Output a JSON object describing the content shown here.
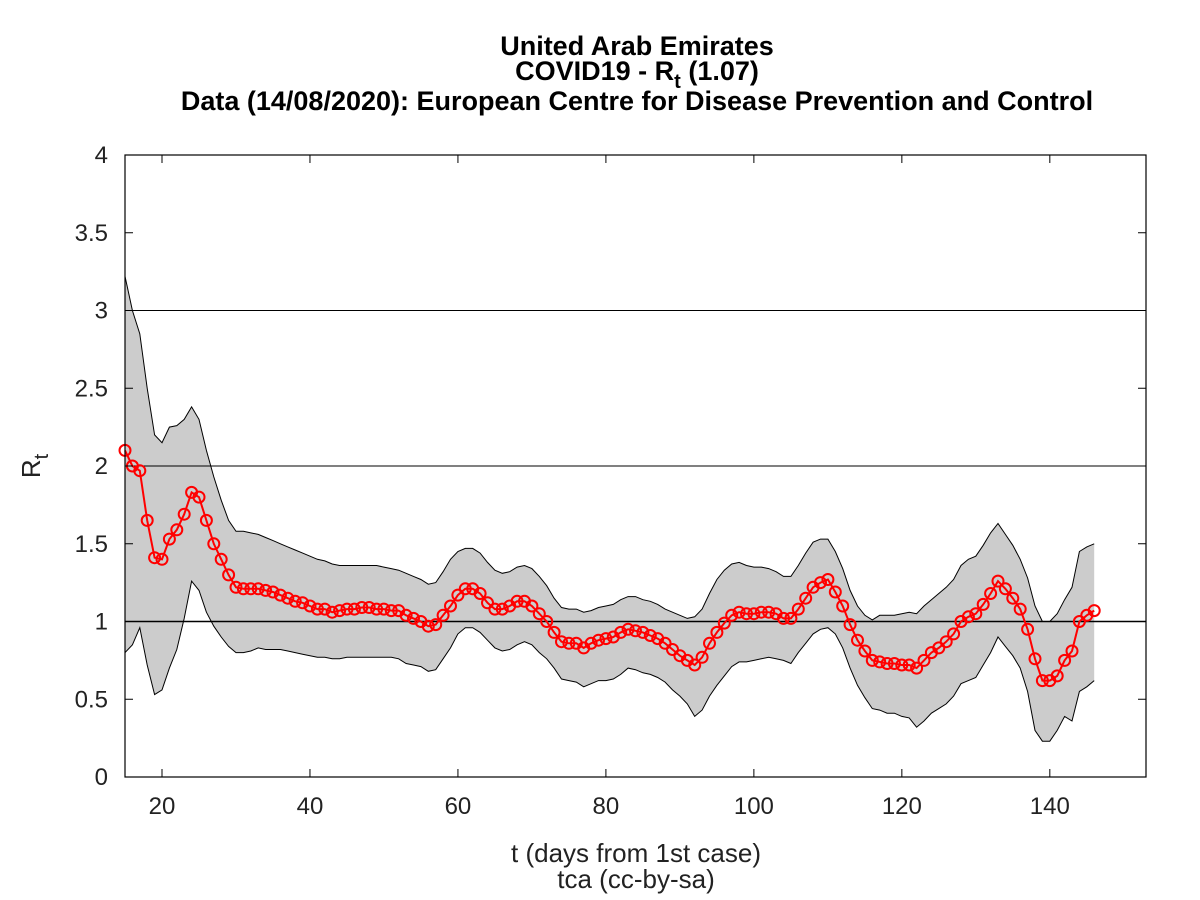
{
  "chart_data": {
    "type": "line",
    "title_lines": [
      "United Arab Emirates",
      "COVID19 - R",
      "t",
      " (1.07)",
      "Data (14/08/2020): European Centre for Disease Prevention and Control"
    ],
    "title": {
      "line1": "United Arab Emirates",
      "line2_prefix": "COVID19 - R",
      "line2_sub": "t",
      "line2_suffix": " (1.07)",
      "line3": "Data (14/08/2020): European Centre for Disease Prevention and Control"
    },
    "xlabel": "t (days from 1st case)",
    "xlabel2": "tca (cc-by-sa)",
    "ylabel_main": "R",
    "ylabel_sub": "t",
    "xlim": [
      15,
      153
    ],
    "ylim": [
      0,
      4
    ],
    "xticks": [
      20,
      40,
      60,
      80,
      100,
      120,
      140
    ],
    "yticks": [
      0,
      0.5,
      1,
      1.5,
      2,
      2.5,
      3,
      3.5,
      4
    ],
    "ytick_labels": [
      "0",
      "0.5",
      "1",
      "1.5",
      "2",
      "2.5",
      "3",
      "3.5",
      "4"
    ],
    "hlines": [
      1,
      2,
      3
    ],
    "grid": false,
    "colors": {
      "series": "#ff0000",
      "band": "#cccccc",
      "band_edge": "#000000"
    },
    "x_start": 15,
    "rt": [
      2.1,
      2.0,
      1.97,
      1.65,
      1.41,
      1.4,
      1.53,
      1.59,
      1.69,
      1.83,
      1.8,
      1.65,
      1.5,
      1.4,
      1.3,
      1.22,
      1.21,
      1.21,
      1.21,
      1.2,
      1.19,
      1.17,
      1.15,
      1.13,
      1.12,
      1.1,
      1.08,
      1.08,
      1.06,
      1.07,
      1.08,
      1.08,
      1.09,
      1.09,
      1.08,
      1.08,
      1.07,
      1.07,
      1.04,
      1.02,
      1.0,
      0.97,
      0.98,
      1.04,
      1.1,
      1.17,
      1.21,
      1.21,
      1.18,
      1.12,
      1.08,
      1.08,
      1.1,
      1.13,
      1.13,
      1.1,
      1.05,
      1.0,
      0.93,
      0.87,
      0.86,
      0.86,
      0.83,
      0.86,
      0.88,
      0.89,
      0.9,
      0.93,
      0.95,
      0.94,
      0.93,
      0.91,
      0.89,
      0.86,
      0.82,
      0.78,
      0.75,
      0.72,
      0.77,
      0.86,
      0.93,
      0.99,
      1.04,
      1.06,
      1.05,
      1.05,
      1.06,
      1.06,
      1.05,
      1.02,
      1.02,
      1.08,
      1.15,
      1.22,
      1.25,
      1.27,
      1.19,
      1.1,
      0.98,
      0.88,
      0.81,
      0.75,
      0.74,
      0.73,
      0.73,
      0.72,
      0.72,
      0.7,
      0.75,
      0.8,
      0.83,
      0.87,
      0.92,
      1.0,
      1.03,
      1.05,
      1.11,
      1.18,
      1.26,
      1.21,
      1.15,
      1.08,
      0.95,
      0.76,
      0.62,
      0.62,
      0.65,
      0.75,
      0.81,
      1.0,
      1.04,
      1.07
    ],
    "band_upper": [
      3.22,
      3.0,
      2.85,
      2.5,
      2.2,
      2.15,
      2.25,
      2.26,
      2.3,
      2.38,
      2.3,
      2.1,
      1.93,
      1.78,
      1.65,
      1.58,
      1.58,
      1.57,
      1.56,
      1.54,
      1.52,
      1.5,
      1.48,
      1.46,
      1.44,
      1.42,
      1.4,
      1.39,
      1.37,
      1.36,
      1.36,
      1.36,
      1.36,
      1.36,
      1.36,
      1.35,
      1.34,
      1.33,
      1.31,
      1.29,
      1.27,
      1.24,
      1.25,
      1.32,
      1.4,
      1.45,
      1.47,
      1.47,
      1.44,
      1.38,
      1.33,
      1.31,
      1.32,
      1.35,
      1.36,
      1.34,
      1.29,
      1.23,
      1.15,
      1.09,
      1.08,
      1.08,
      1.06,
      1.07,
      1.09,
      1.1,
      1.11,
      1.14,
      1.16,
      1.16,
      1.14,
      1.13,
      1.11,
      1.08,
      1.06,
      1.04,
      1.02,
      1.03,
      1.08,
      1.18,
      1.27,
      1.33,
      1.37,
      1.38,
      1.36,
      1.35,
      1.35,
      1.34,
      1.32,
      1.29,
      1.29,
      1.36,
      1.44,
      1.51,
      1.53,
      1.53,
      1.45,
      1.34,
      1.2,
      1.1,
      1.04,
      1.01,
      1.04,
      1.04,
      1.04,
      1.05,
      1.06,
      1.05,
      1.1,
      1.14,
      1.18,
      1.22,
      1.27,
      1.36,
      1.4,
      1.42,
      1.49,
      1.57,
      1.63,
      1.56,
      1.49,
      1.4,
      1.28,
      1.1,
      1.0,
      1.0,
      1.05,
      1.14,
      1.22,
      1.45,
      1.48,
      1.5
    ],
    "band_lower": [
      0.8,
      0.85,
      0.96,
      0.72,
      0.53,
      0.56,
      0.7,
      0.82,
      1.02,
      1.26,
      1.2,
      1.06,
      0.97,
      0.9,
      0.84,
      0.8,
      0.8,
      0.81,
      0.83,
      0.82,
      0.82,
      0.82,
      0.81,
      0.8,
      0.79,
      0.78,
      0.77,
      0.77,
      0.76,
      0.76,
      0.77,
      0.77,
      0.77,
      0.77,
      0.77,
      0.77,
      0.77,
      0.76,
      0.73,
      0.72,
      0.71,
      0.68,
      0.69,
      0.76,
      0.83,
      0.92,
      0.96,
      0.96,
      0.93,
      0.88,
      0.83,
      0.81,
      0.82,
      0.85,
      0.87,
      0.85,
      0.8,
      0.76,
      0.7,
      0.63,
      0.62,
      0.61,
      0.58,
      0.6,
      0.62,
      0.62,
      0.63,
      0.66,
      0.7,
      0.69,
      0.67,
      0.66,
      0.64,
      0.61,
      0.56,
      0.52,
      0.47,
      0.39,
      0.43,
      0.52,
      0.59,
      0.65,
      0.71,
      0.74,
      0.74,
      0.75,
      0.76,
      0.77,
      0.76,
      0.75,
      0.73,
      0.8,
      0.86,
      0.92,
      0.95,
      0.96,
      0.92,
      0.83,
      0.7,
      0.59,
      0.51,
      0.44,
      0.43,
      0.41,
      0.41,
      0.39,
      0.38,
      0.32,
      0.36,
      0.41,
      0.44,
      0.47,
      0.52,
      0.6,
      0.62,
      0.64,
      0.72,
      0.8,
      0.9,
      0.84,
      0.78,
      0.7,
      0.55,
      0.3,
      0.23,
      0.23,
      0.3,
      0.39,
      0.36,
      0.55,
      0.58,
      0.62
    ]
  }
}
